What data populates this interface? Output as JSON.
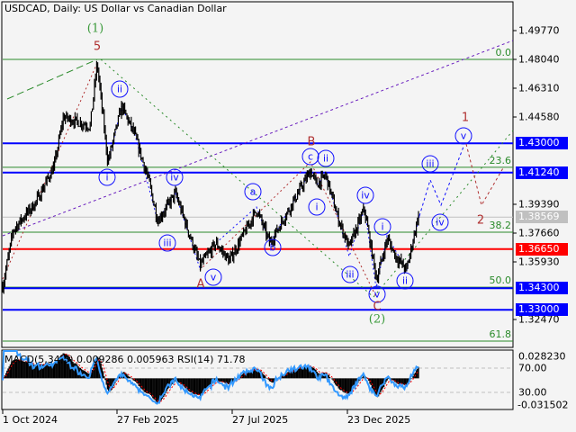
{
  "header": {
    "title": "USDCAD, Daily:  US Dollar vs Canadian Dollar"
  },
  "indicator": {
    "title": "MACD(5,34,5) 0.009286 0.005963 RSI(14) 71.78"
  },
  "colors": {
    "candles": "#000000",
    "support_resistance_blue": "#0000ff",
    "key_level_red": "#ff0000",
    "fib": "#2a8a2a",
    "rsi": "#3399ff",
    "macd_signal": "#ff0000",
    "forecast_blue": "#1010ff",
    "forecast_red": "#b03030"
  },
  "chart_data": {
    "type": "line",
    "title": "USDCAD, Daily:  US Dollar vs Canadian Dollar",
    "price_axis_ticks": [
      "1.49770",
      "1.48040",
      "1.46310",
      "1.44580",
      "1.39390",
      "1.37660",
      "1.35930",
      "1.32470"
    ],
    "price_tags": [
      {
        "label": "1.43000",
        "value": 1.43,
        "color": "#0000ff"
      },
      {
        "label": "1.41240",
        "value": 1.4124,
        "color": "#0000ff"
      },
      {
        "label": "1.38569",
        "value": 1.38569,
        "color": "#c0c0c0"
      },
      {
        "label": "1.36650",
        "value": 1.3665,
        "color": "#ff0000"
      },
      {
        "label": "1.34300",
        "value": 1.343,
        "color": "#0000ff"
      },
      {
        "label": "1.33000",
        "value": 1.33,
        "color": "#0000ff"
      }
    ],
    "fibonacci": [
      {
        "label": "0.0",
        "value": 1.4804
      },
      {
        "label": "23.6",
        "value": 1.4156
      },
      {
        "label": "38.2",
        "value": 1.3766
      },
      {
        "label": "50.0",
        "value": 1.3436
      },
      {
        "label": "61.8",
        "value": 1.3112
      }
    ],
    "date_ticks": [
      "1 Oct 2024",
      "27 Feb 2025",
      "27 Jul 2025",
      "23 Dec 2025"
    ],
    "yrange": [
      1.316,
      1.508
    ],
    "price_path": [
      [
        "2024-10-01",
        1.3442
      ],
      [
        "2024-10-15",
        1.3782
      ],
      [
        "2024-11-13",
        1.3945
      ],
      [
        "2024-12-07",
        1.4161
      ],
      [
        "2024-12-19",
        1.4458
      ],
      [
        "2025-01-23",
        1.4404
      ],
      [
        "2025-02-01",
        1.4782
      ],
      [
        "2025-02-15",
        1.4188
      ],
      [
        "2025-03-05",
        1.4523
      ],
      [
        "2025-03-22",
        1.435
      ],
      [
        "2025-04-09",
        1.408
      ],
      [
        "2025-04-21",
        1.3836
      ],
      [
        "2025-05-14",
        1.3999
      ],
      [
        "2025-06-15",
        1.3566
      ],
      [
        "2025-07-06",
        1.3701
      ],
      [
        "2025-07-23",
        1.3593
      ],
      [
        "2025-08-28",
        1.3901
      ],
      [
        "2025-09-14",
        1.3701
      ],
      [
        "2025-11-06",
        1.4134
      ],
      [
        "2025-11-14",
        1.4053
      ],
      [
        "2025-11-26",
        1.4107
      ],
      [
        "2025-12-11",
        1.3863
      ],
      [
        "2025-12-26",
        1.3674
      ],
      [
        "2026-01-15",
        1.3907
      ],
      [
        "2026-01-31",
        1.3485
      ],
      [
        "2026-02-14",
        1.3728
      ],
      [
        "2026-02-25",
        1.362
      ],
      [
        "2026-03-11",
        1.3539
      ],
      [
        "2026-03-28",
        1.3901
      ]
    ],
    "indicator_axis_ticks": [
      "0.028230",
      "70.00",
      "30.00",
      "-0.031502"
    ],
    "indicator_levels": [
      70,
      30
    ],
    "rsi_last": 71.78,
    "macd_last": 0.009286,
    "macd_signal_last": 0.005963
  },
  "wave_labels": [
    "(1)",
    "5",
    "ii",
    "i",
    "iv",
    "iii",
    "v",
    "A",
    "a",
    "b",
    "c",
    "B",
    "ii",
    "i",
    "iv",
    "iii",
    "v",
    "C",
    "(2)",
    "i",
    "ii",
    "iii",
    "iv",
    "v",
    "1",
    "2"
  ]
}
